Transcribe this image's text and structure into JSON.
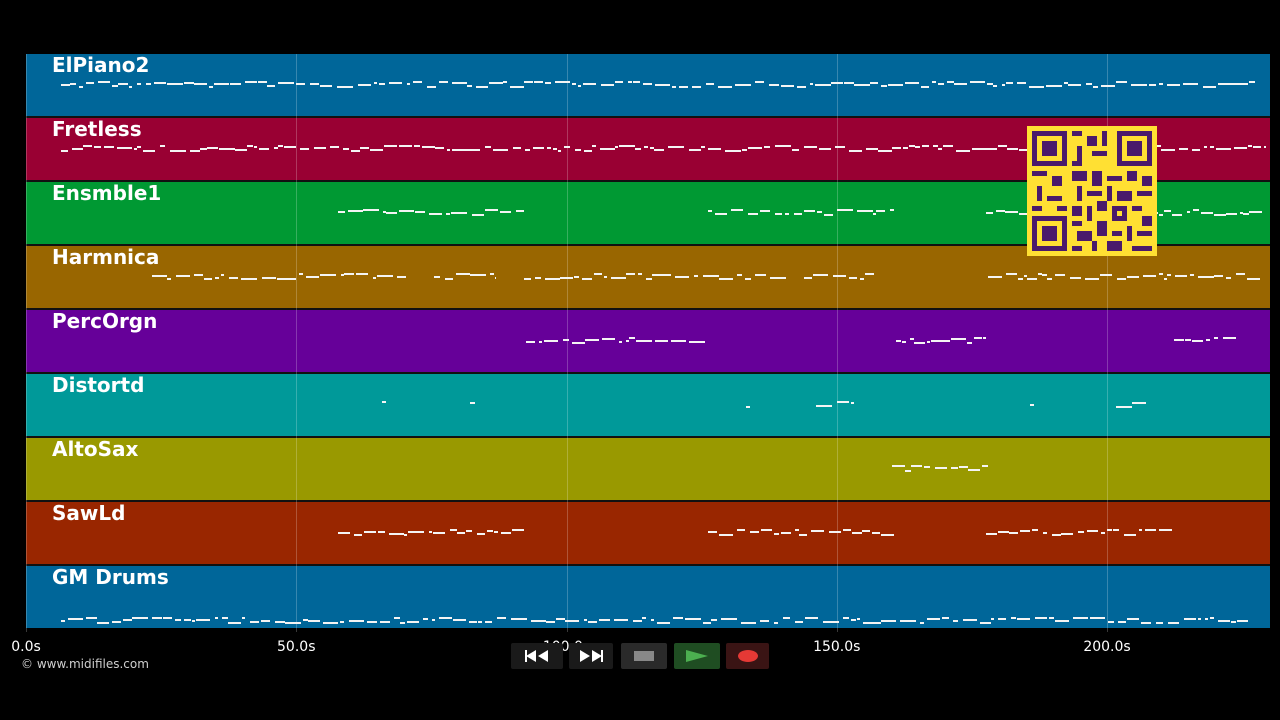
{
  "tracks": [
    {
      "name": "ElPiano2",
      "color": "#006699"
    },
    {
      "name": "Fretless",
      "color": "#990033"
    },
    {
      "name": "Ensmble1",
      "color": "#009933"
    },
    {
      "name": "Harmnica",
      "color": "#996600"
    },
    {
      "name": "PercOrgn",
      "color": "#660099"
    },
    {
      "name": "Distortd",
      "color": "#009999"
    },
    {
      "name": "AltoSax",
      "color": "#999900"
    },
    {
      "name": "SawLd",
      "color": "#992600"
    },
    {
      "name": "GM Drums",
      "color": "#006699"
    }
  ],
  "time_axis": {
    "ticks": [
      "0.0s",
      "50.0s",
      "100.0s",
      "150.0s",
      "200.0s"
    ],
    "tick_values": [
      0,
      50,
      100,
      150,
      200
    ],
    "max_seconds": 230
  },
  "copyright": "© www.midifiles.com",
  "controls": {
    "rewind_icon": "rewind-icon",
    "forward_icon": "fast-forward-icon",
    "stop_icon": "stop-icon",
    "play_icon": "play-icon",
    "record_icon": "record-icon",
    "colors": {
      "play": "#2e7d32",
      "record": "#e53935",
      "stop": "#888888"
    }
  },
  "qr_code": {
    "icon": "qr-code-icon",
    "color": "#ffe033",
    "ink": "#4a1a6b"
  }
}
